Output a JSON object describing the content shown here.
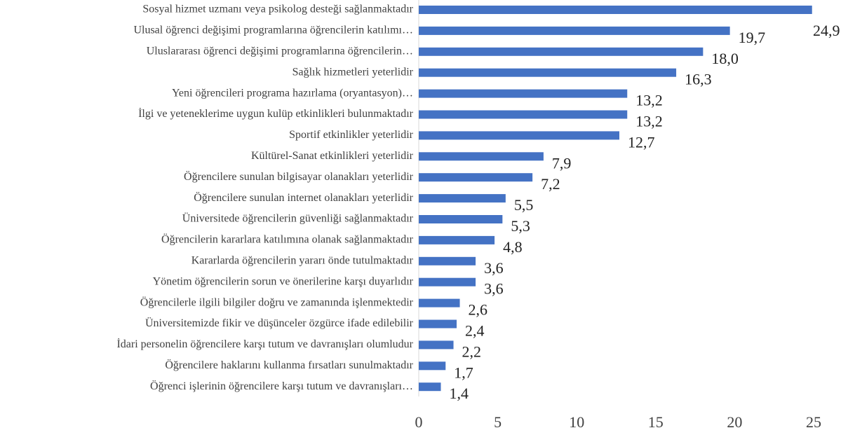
{
  "chart_data": {
    "type": "bar",
    "orientation": "horizontal",
    "categories": [
      "Sosyal hizmet uzmanı veya psikolog desteği sağlanmaktadır",
      "Ulusal öğrenci değişimi programlarına öğrencilerin katılımı…",
      "Uluslararası öğrenci değişimi programlarına öğrencilerin…",
      "Sağlık hizmetleri yeterlidir",
      "Yeni öğrencileri programa hazırlama (oryantasyon)…",
      "İlgi ve yeteneklerime uygun kulüp etkinlikleri bulunmaktadır",
      "Sportif etkinlikler yeterlidir",
      "Kültürel-Sanat etkinlikleri yeterlidir",
      "Öğrencilere sunulan bilgisayar olanakları yeterlidir",
      "Öğrencilere sunulan internet olanakları yeterlidir",
      "Üniversitede öğrencilerin güvenliği sağlanmaktadır",
      "Öğrencilerin kararlara katılımına olanak sağlanmaktadır",
      "Kararlarda öğrencilerin yararı önde tutulmaktadır",
      "Yönetim öğrencilerin sorun ve önerilerine karşı duyarlıdır",
      "Öğrencilerle ilgili bilgiler doğru ve zamanında işlenmektedir",
      "Üniversitemizde fikir ve düşünceler özgürce ifade edilebilir",
      "İdari personelin öğrencilere karşı tutum ve davranışları olumludur",
      "Öğrencilere haklarını kullanma fırsatları sunulmaktadır",
      "Öğrenci işlerinin öğrencilere karşı tutum ve davranışları…"
    ],
    "values": [
      24.9,
      19.7,
      18.0,
      16.3,
      13.2,
      13.2,
      12.7,
      7.9,
      7.2,
      5.5,
      5.3,
      4.8,
      3.6,
      3.6,
      2.6,
      2.4,
      2.2,
      1.7,
      1.4
    ],
    "value_labels": [
      "24,9",
      "19,7",
      "18,0",
      "16,3",
      "13,2",
      "13,2",
      "12,7",
      "7,9",
      "7,2",
      "5,5",
      "5,3",
      "4,8",
      "3,6",
      "3,6",
      "2,6",
      "2,4",
      "2,2",
      "1,7",
      "1,4"
    ],
    "color": "#4472c4",
    "xlim": [
      0,
      25
    ],
    "xticks": [
      0,
      5,
      10,
      15,
      20,
      25
    ],
    "grid": false
  }
}
